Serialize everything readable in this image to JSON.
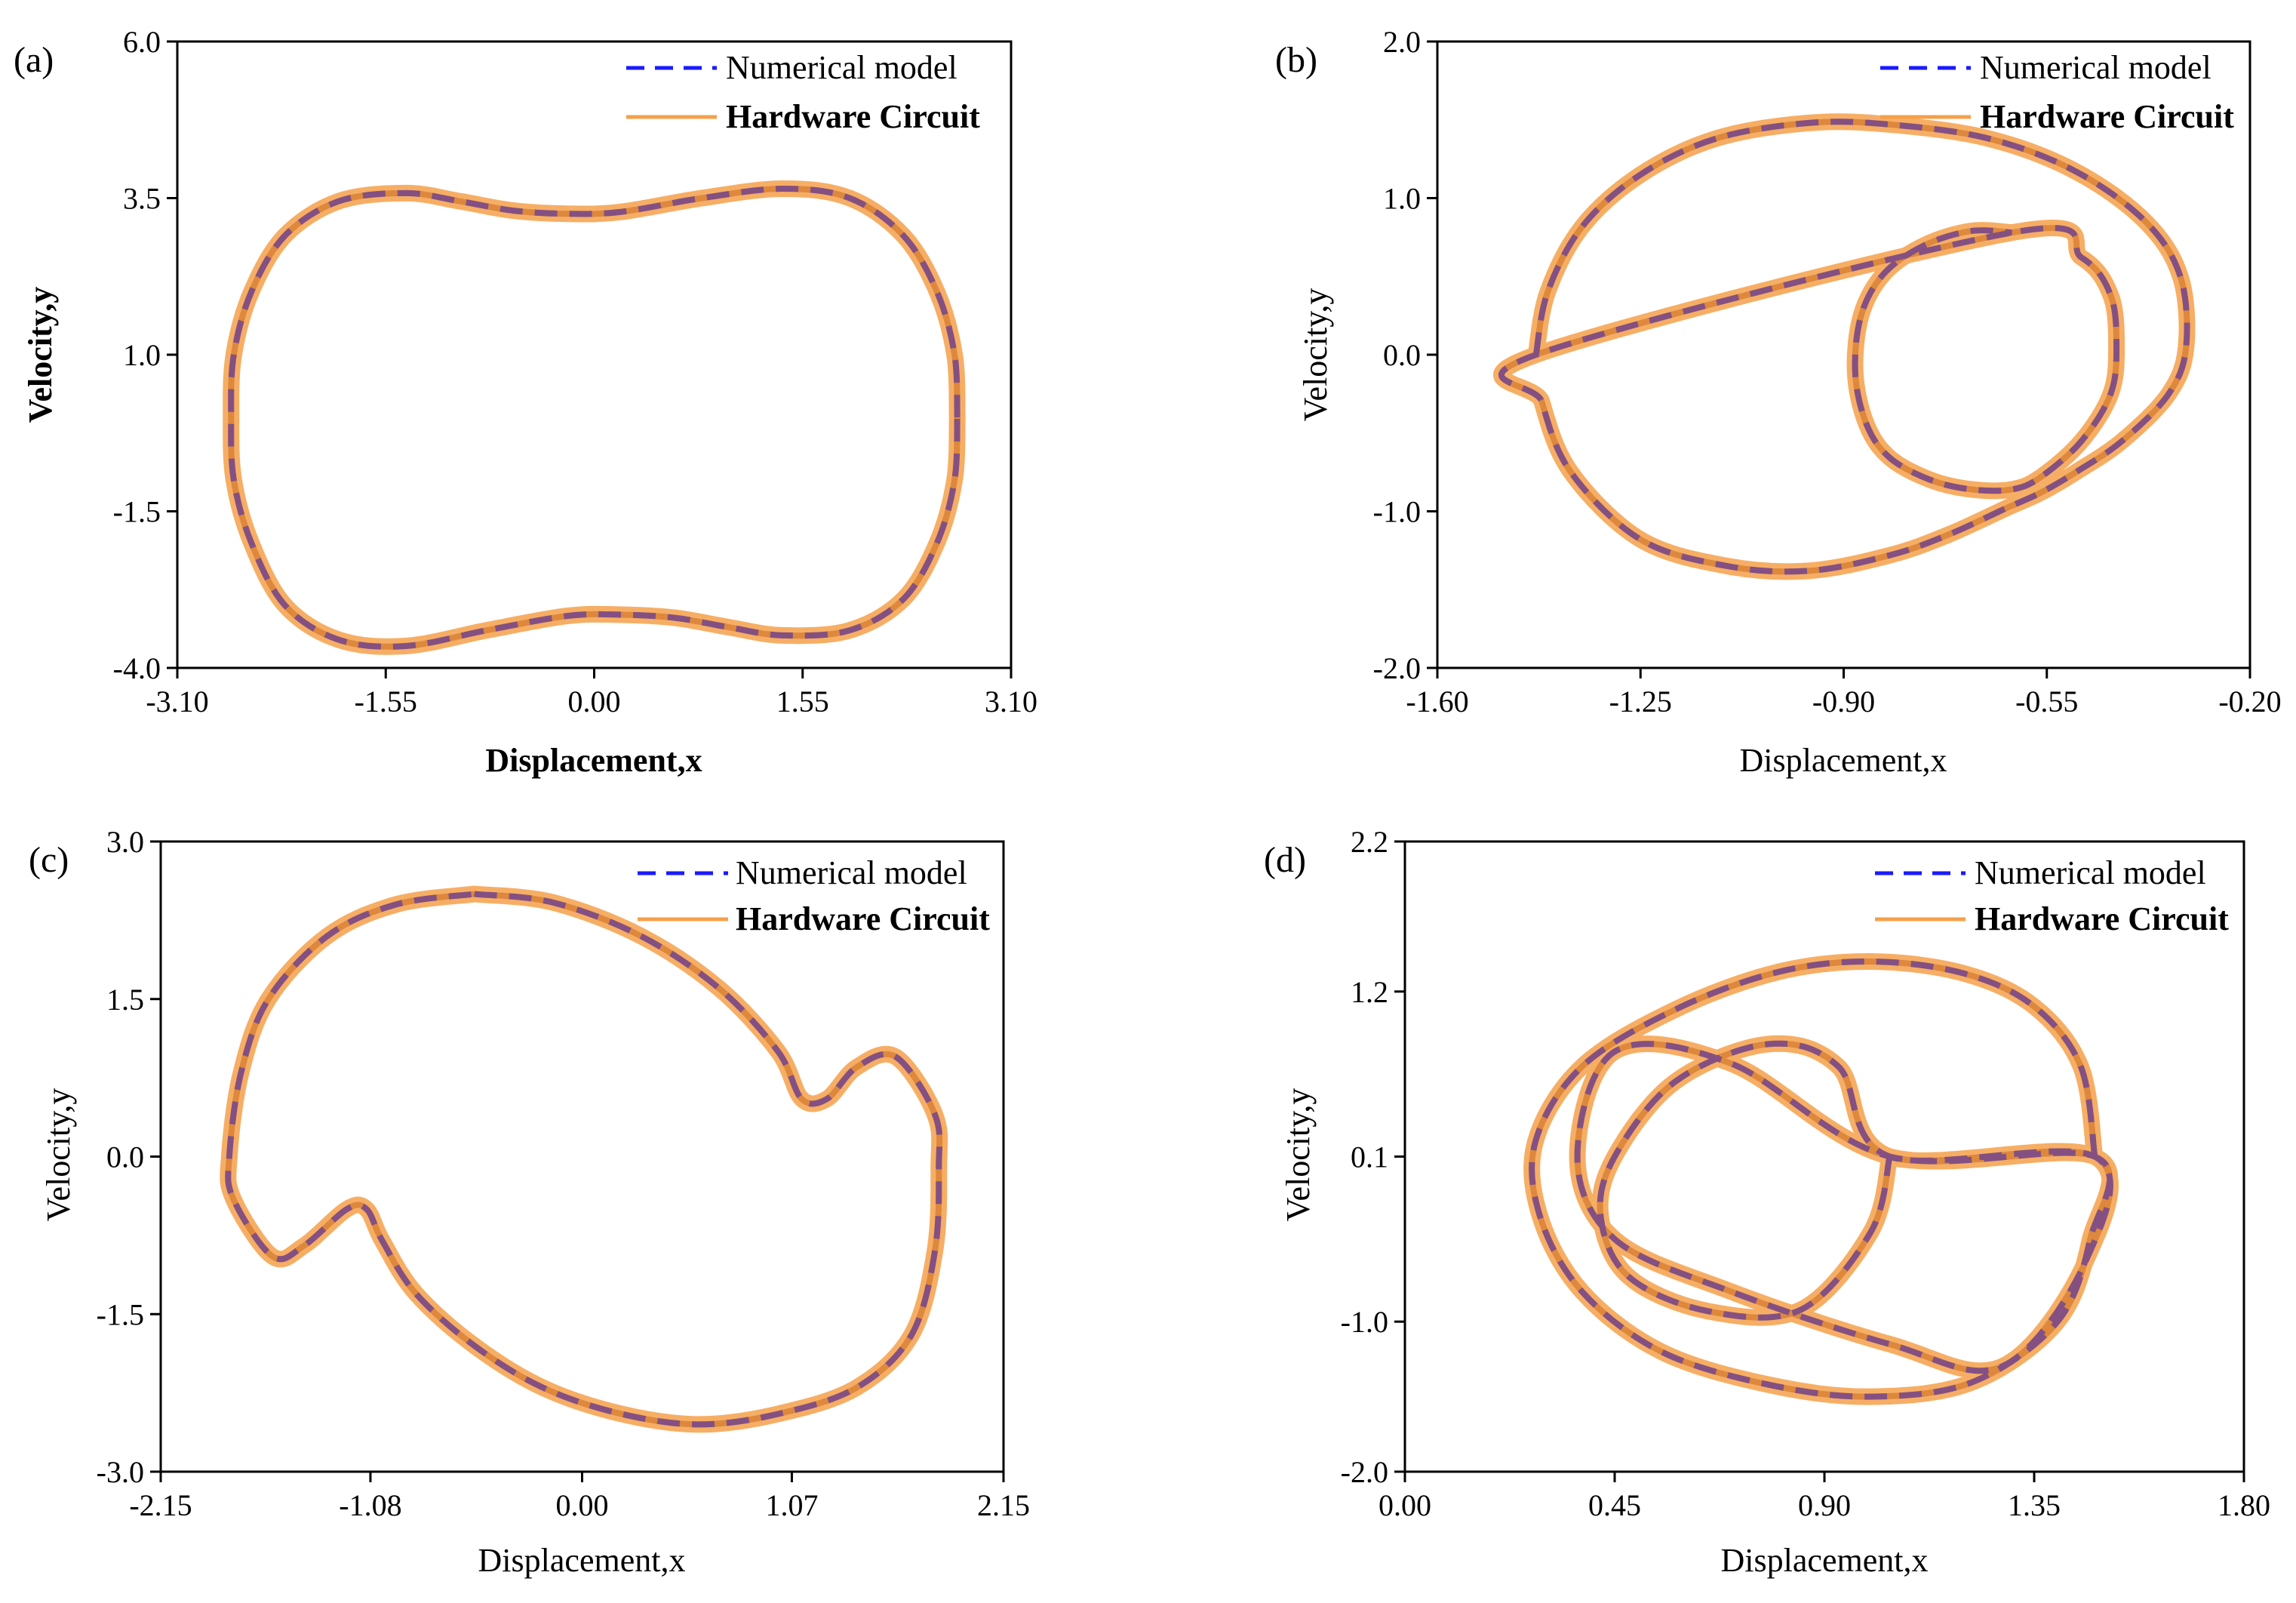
{
  "figure": {
    "legend": {
      "numerical": "Numerical model",
      "hardware": "Hardware Circuit"
    },
    "colors": {
      "numerical": "#1a1aff",
      "hardware": "#f5a04a",
      "hardware_inner": "#c8691e",
      "overlap": "#7a4a8a"
    }
  },
  "chart_data": [
    {
      "type": "line",
      "panel": "(a)",
      "title": "",
      "xlabel": "Displacement,x",
      "ylabel": "Velocity,y",
      "xlim": [
        -3.1,
        3.1
      ],
      "ylim": [
        -4.0,
        6.0
      ],
      "xticks": [
        "-3.10",
        "-1.55",
        "0.00",
        "1.55",
        "3.10"
      ],
      "yticks": [
        "-4.0",
        "-1.5",
        "1.0",
        "3.5",
        "6.0"
      ],
      "xtick_values": [
        -3.1,
        -1.55,
        0.0,
        1.55,
        3.1
      ],
      "ytick_values": [
        -4.0,
        -1.5,
        1.0,
        3.5,
        6.0
      ],
      "legend": "top-right",
      "series": [
        {
          "name": "Numerical model",
          "style": "dashed",
          "x": [
            2.7,
            2.68,
            2.55,
            2.3,
            1.9,
            1.4,
            0.8,
            0.2,
            -0.2,
            -0.6,
            -1.0,
            -1.4,
            -1.9,
            -2.3,
            -2.55,
            -2.68,
            -2.7,
            -2.68,
            -2.55,
            -2.3,
            -1.9,
            -1.4,
            -0.8,
            -0.2,
            0.2,
            0.6,
            1.0,
            1.4,
            1.9,
            2.3,
            2.55,
            2.68,
            2.7
          ],
          "y": [
            0.0,
            1.0,
            2.0,
            2.9,
            3.5,
            3.65,
            3.5,
            3.28,
            3.25,
            3.3,
            3.45,
            3.58,
            3.45,
            2.9,
            2.0,
            1.0,
            0.0,
            -1.0,
            -2.0,
            -3.0,
            -3.55,
            -3.65,
            -3.4,
            -3.17,
            -3.15,
            -3.2,
            -3.35,
            -3.48,
            -3.4,
            -2.9,
            -2.0,
            -1.0,
            0.0
          ]
        }
      ]
    },
    {
      "type": "line",
      "panel": "(b)",
      "title": "",
      "xlabel": "Displacement,x",
      "ylabel": "Velocity,y",
      "xlim": [
        -1.6,
        -0.2
      ],
      "ylim": [
        -2.0,
        2.0
      ],
      "xticks": [
        "-1.60",
        "-1.25",
        "-0.90",
        "-0.55",
        "-0.20"
      ],
      "yticks": [
        "-2.0",
        "-1.0",
        "0.0",
        "1.0",
        "2.0"
      ],
      "xtick_values": [
        -1.6,
        -1.25,
        -0.9,
        -0.55,
        -0.2
      ],
      "ytick_values": [
        -2.0,
        -1.0,
        0.0,
        1.0,
        2.0
      ],
      "legend": "top-right",
      "series": [
        {
          "name": "Numerical model",
          "style": "dashed",
          "x": [
            -1.43,
            -1.41,
            -1.35,
            -1.25,
            -1.12,
            -0.96,
            -0.82,
            -0.65,
            -0.5,
            -0.38,
            -0.32,
            -0.31,
            -0.34,
            -0.42,
            -0.5,
            -0.56,
            -0.62,
            -0.72,
            -0.82,
            -0.96,
            -1.1,
            -1.25,
            -1.37,
            -1.42,
            -1.43,
            -0.61,
            -0.49,
            -0.44,
            -0.43,
            -0.44,
            -0.49,
            -0.56,
            -0.61,
            -0.68,
            -0.75,
            -0.82,
            -0.86,
            -0.88,
            -0.87,
            -0.83,
            -0.76,
            -0.68,
            -0.61
          ],
          "y": [
            0.0,
            0.4,
            0.82,
            1.15,
            1.38,
            1.48,
            1.47,
            1.38,
            1.17,
            0.85,
            0.5,
            0.05,
            -0.25,
            -0.55,
            -0.75,
            -0.88,
            -0.98,
            -1.15,
            -1.28,
            -1.38,
            -1.35,
            -1.18,
            -0.75,
            -0.3,
            0.0,
            0.78,
            0.62,
            0.38,
            0.05,
            -0.25,
            -0.55,
            -0.78,
            -0.86,
            -0.86,
            -0.8,
            -0.66,
            -0.45,
            -0.12,
            0.25,
            0.52,
            0.7,
            0.79,
            0.78
          ]
        }
      ]
    },
    {
      "type": "line",
      "panel": "(c)",
      "title": "",
      "xlabel": "Displacement,x",
      "ylabel": "Velocity,y",
      "xlim": [
        -2.15,
        2.15
      ],
      "ylim": [
        -3.0,
        3.0
      ],
      "xticks": [
        "-2.15",
        "-1.08",
        "0.00",
        "1.07",
        "2.15"
      ],
      "yticks": [
        "-3.0",
        "-1.5",
        "0.0",
        "1.5",
        "3.0"
      ],
      "xtick_values": [
        -2.15,
        -1.08,
        0.0,
        1.07,
        2.15
      ],
      "ytick_values": [
        -3.0,
        -1.5,
        0.0,
        1.5,
        3.0
      ],
      "legend": "top-right",
      "series": [
        {
          "name": "Numerical model",
          "style": "dashed",
          "x": [
            -0.55,
            -0.15,
            0.3,
            0.7,
            1.0,
            1.12,
            1.25,
            1.4,
            1.6,
            1.8,
            1.82,
            1.8,
            1.68,
            1.4,
            1.0,
            0.6,
            0.2,
            -0.2,
            -0.55,
            -0.85,
            -1.02,
            -1.1,
            -1.2,
            -1.42,
            -1.58,
            -1.78,
            -1.8,
            -1.74,
            -1.6,
            -1.3,
            -0.95,
            -0.55
          ],
          "y": [
            2.5,
            2.42,
            2.1,
            1.6,
            1.0,
            0.55,
            0.55,
            0.85,
            0.95,
            0.4,
            -0.1,
            -0.9,
            -1.7,
            -2.2,
            -2.45,
            -2.55,
            -2.45,
            -2.2,
            -1.8,
            -1.3,
            -0.8,
            -0.5,
            -0.5,
            -0.85,
            -0.95,
            -0.4,
            0.0,
            0.8,
            1.5,
            2.1,
            2.4,
            2.5
          ]
        }
      ]
    },
    {
      "type": "line",
      "panel": "(d)",
      "title": "",
      "xlabel": "Displacement,x",
      "ylabel": "Velocity,y",
      "xlim": [
        0.0,
        1.8
      ],
      "ylim": [
        -2.0,
        2.2
      ],
      "xticks": [
        "0.00",
        "0.45",
        "0.90",
        "1.35",
        "1.80"
      ],
      "yticks": [
        "-2.0",
        "-1.0",
        "0.1",
        "1.2",
        "2.2"
      ],
      "xtick_values": [
        0.0,
        0.45,
        0.9,
        1.35,
        1.8
      ],
      "ytick_values": [
        -2.0,
        -1.0,
        0.1,
        1.2,
        2.2
      ],
      "legend": "top-right",
      "series": [
        {
          "name": "Numerical model",
          "style": "dashed",
          "x": [
            1.48,
            1.45,
            1.35,
            1.2,
            1.0,
            0.8,
            0.58,
            0.38,
            0.28,
            0.29,
            0.38,
            0.55,
            0.78,
            1.0,
            1.22,
            1.4,
            1.47,
            1.48,
            1.04,
            0.7,
            0.45,
            0.37,
            0.45,
            0.7,
            1.04,
            1.28,
            1.46,
            1.48,
            1.04,
            0.93,
            0.78,
            0.58,
            0.45,
            0.42,
            0.48,
            0.65,
            0.85,
            1.0,
            1.04
          ],
          "y": [
            0.1,
            0.7,
            1.1,
            1.32,
            1.4,
            1.33,
            1.08,
            0.7,
            0.2,
            -0.3,
            -0.8,
            -1.2,
            -1.42,
            -1.5,
            -1.4,
            -1.0,
            -0.45,
            0.1,
            0.1,
            0.72,
            0.8,
            0.1,
            -0.45,
            -0.8,
            -1.15,
            -1.3,
            -0.6,
            0.1,
            0.1,
            0.7,
            0.85,
            0.6,
            0.1,
            -0.3,
            -0.7,
            -0.93,
            -0.92,
            -0.4,
            0.1
          ]
        }
      ]
    }
  ]
}
